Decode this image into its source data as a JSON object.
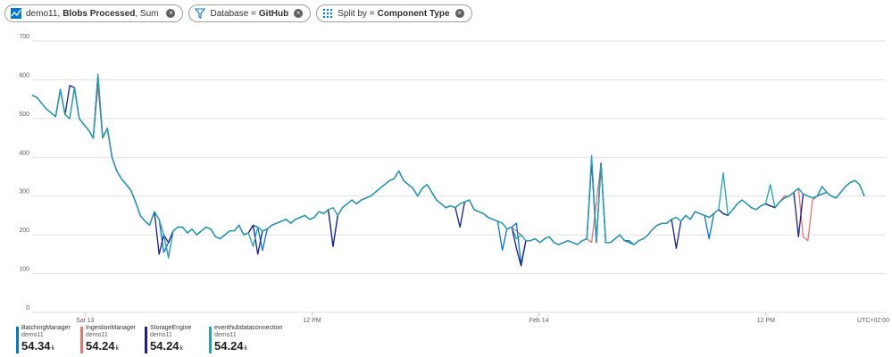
{
  "pills": {
    "metric": {
      "prefix": "demo11, ",
      "bold": "Blobs Processed",
      "suffix": ", Sum"
    },
    "filter": {
      "label": "Database = ",
      "bold": "GitHub"
    },
    "split": {
      "label": "Split by = ",
      "bold": "Component Type"
    }
  },
  "colors": {
    "BatchingManager": "#0078d4",
    "IngestionManager": "#e8756b",
    "StorageEngine": "#1a1f8f",
    "eventhubdataconnection": "#1fa5b0"
  },
  "legend": [
    {
      "name": "BatchingManager",
      "sub": "demo11",
      "value": "54.34",
      "unit": "k",
      "color": "#0078d4"
    },
    {
      "name": "IngestionManager",
      "sub": "demo11",
      "value": "54.24",
      "unit": "k",
      "color": "#e8756b"
    },
    {
      "name": "StorageEngine",
      "sub": "demo11",
      "value": "54.24",
      "unit": "k",
      "color": "#1a1f8f"
    },
    {
      "name": "eventhubdataconnection",
      "sub": "demo11",
      "value": "54.24",
      "unit": "k",
      "color": "#1fa5b0"
    }
  ],
  "chart_data": {
    "type": "line",
    "ylim": [
      0,
      700
    ],
    "yticks": [
      0,
      100,
      200,
      300,
      400,
      500,
      600,
      700
    ],
    "xlim": [
      0,
      220
    ],
    "xticks": [
      {
        "x": 14,
        "label": "Sat 13"
      },
      {
        "x": 74,
        "label": "12 PM"
      },
      {
        "x": 134,
        "label": "Feb 14"
      },
      {
        "x": 194,
        "label": "12 PM"
      }
    ],
    "timezone_label": "UTC+02:00",
    "grid": true,
    "base": [
      560,
      555,
      540,
      525,
      515,
      505,
      575,
      510,
      500,
      580,
      500,
      485,
      470,
      450,
      610,
      450,
      475,
      400,
      365,
      345,
      330,
      315,
      285,
      250,
      235,
      225,
      260,
      240,
      200,
      180,
      210,
      220,
      220,
      205,
      215,
      200,
      210,
      220,
      215,
      195,
      190,
      200,
      210,
      210,
      225,
      200,
      205,
      225,
      220,
      210,
      215,
      225,
      230,
      235,
      240,
      230,
      240,
      245,
      250,
      240,
      245,
      260,
      255,
      265,
      270,
      250,
      270,
      280,
      290,
      280,
      290,
      295,
      300,
      310,
      320,
      330,
      340,
      345,
      365,
      340,
      330,
      320,
      300,
      320,
      330,
      310,
      290,
      280,
      270,
      275,
      270,
      280,
      285,
      290,
      265,
      260,
      255,
      245,
      240,
      235,
      230,
      215,
      220,
      230,
      200,
      185,
      185,
      190,
      180,
      190,
      195,
      180,
      175,
      180,
      185,
      180,
      175,
      185,
      190,
      180,
      180,
      385,
      180,
      180,
      190,
      200,
      185,
      180,
      175,
      185,
      190,
      200,
      215,
      225,
      230,
      230,
      240,
      245,
      235,
      250,
      240,
      260,
      255,
      250,
      245,
      255,
      265,
      255,
      250,
      265,
      280,
      290,
      280,
      270,
      265,
      275,
      280,
      275,
      270,
      285,
      295,
      300,
      310,
      320,
      305,
      300,
      295,
      300,
      325,
      310,
      300,
      295,
      310,
      325,
      335,
      340,
      330,
      300
    ],
    "series": [
      {
        "name": "BatchingManager",
        "values": []
      },
      {
        "name": "IngestionManager",
        "values": []
      },
      {
        "name": "StorageEngine",
        "values": []
      },
      {
        "name": "eventhubdataconnection",
        "values": []
      }
    ]
  }
}
